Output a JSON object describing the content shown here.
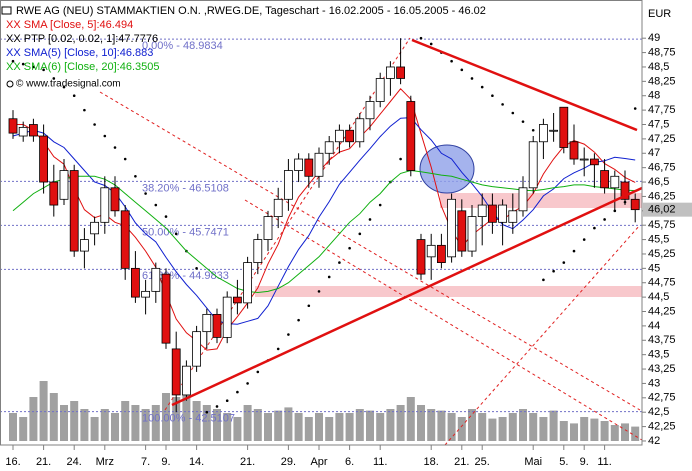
{
  "chart_data": {
    "type": "candlestick",
    "title": "RWE AG (NEU) STAMMAKTIEN O.N. ,RWEG.DE, Tageschart - 16.02.2005 - 16.05.2005 - 46.02",
    "copyright": "© www.tradesignal.com",
    "currency": "EUR",
    "last_price": {
      "value": 46.02,
      "label": "46,02"
    },
    "categories": [
      "16.",
      null,
      null,
      "21.",
      null,
      null,
      "24.",
      null,
      null,
      "Mrz",
      null,
      null,
      null,
      "7.",
      null,
      "9.",
      null,
      null,
      "14.",
      null,
      null,
      null,
      null,
      "21.",
      null,
      null,
      null,
      "29.",
      null,
      null,
      "Apr",
      null,
      null,
      "6.",
      null,
      null,
      "11.",
      null,
      null,
      null,
      null,
      "18.",
      null,
      null,
      "21.",
      null,
      "25.",
      null,
      null,
      null,
      null,
      "Mai",
      null,
      null,
      "5.",
      null,
      "9.",
      null,
      "11.",
      null,
      null,
      null
    ],
    "open": [
      47.6,
      47.3,
      47.5,
      47.3,
      46.5,
      46.2,
      46.7,
      45.3,
      45.6,
      45.8,
      46.4,
      46.0,
      45.0,
      44.5,
      44.6,
      44.9,
      43.6,
      42.8,
      43.3,
      43.9,
      44.2,
      43.8,
      44.5,
      44.4,
      45.1,
      45.5,
      45.9,
      46.2,
      46.7,
      46.9,
      46.6,
      47.0,
      47.2,
      47.4,
      47.2,
      47.6,
      47.9,
      48.3,
      48.5,
      47.9,
      45.5,
      45.2,
      45.4,
      45.2,
      46.0,
      45.3,
      45.9,
      46.1,
      45.8,
      45.8,
      46.0,
      46.4,
      47.2,
      47.4,
      47.8,
      47.2,
      46.9,
      46.9,
      46.7,
      46.4,
      46.5,
      46.2
    ],
    "high": [
      47.75,
      47.55,
      47.6,
      47.5,
      46.8,
      46.9,
      46.8,
      45.7,
      45.9,
      46.6,
      46.6,
      46.1,
      45.3,
      44.8,
      45.1,
      45.0,
      43.9,
      43.4,
      44.0,
      44.3,
      44.3,
      44.6,
      44.8,
      45.2,
      45.6,
      46.0,
      46.4,
      46.9,
      47.0,
      47.0,
      47.1,
      47.3,
      47.5,
      47.5,
      47.7,
      48.0,
      48.4,
      48.6,
      49.0,
      48.0,
      45.6,
      45.6,
      45.6,
      46.3,
      46.2,
      46.1,
      46.3,
      46.3,
      46.2,
      46.3,
      46.6,
      47.3,
      47.6,
      47.7,
      47.8,
      47.5,
      47.1,
      47.0,
      46.9,
      46.7,
      46.7,
      46.3
    ],
    "low": [
      47.25,
      47.2,
      47.2,
      46.3,
      45.9,
      46.1,
      45.2,
      45.0,
      45.4,
      45.6,
      45.9,
      44.8,
      44.4,
      44.2,
      44.4,
      43.6,
      42.5,
      42.7,
      43.2,
      43.6,
      43.7,
      43.7,
      44.2,
      44.3,
      44.9,
      45.3,
      45.7,
      46.0,
      46.5,
      46.4,
      46.4,
      46.8,
      47.0,
      47.1,
      47.1,
      47.4,
      47.8,
      48.0,
      48.2,
      46.6,
      44.8,
      44.8,
      45.0,
      45.1,
      45.2,
      45.2,
      45.4,
      45.6,
      45.4,
      45.6,
      45.9,
      46.3,
      46.9,
      47.2,
      47.0,
      46.8,
      46.6,
      46.4,
      46.3,
      46.0,
      46.1,
      45.8
    ],
    "close": [
      47.35,
      47.45,
      47.3,
      46.5,
      46.1,
      46.7,
      45.3,
      45.5,
      45.8,
      46.4,
      46.0,
      45.0,
      44.5,
      44.6,
      45.0,
      43.7,
      42.8,
      43.3,
      43.9,
      44.2,
      43.8,
      44.5,
      44.4,
      45.1,
      45.5,
      45.9,
      46.2,
      46.7,
      46.9,
      46.6,
      47.0,
      47.2,
      47.4,
      47.2,
      47.6,
      47.9,
      48.3,
      48.5,
      48.3,
      46.7,
      44.9,
      45.4,
      45.1,
      46.2,
      45.3,
      45.9,
      46.1,
      45.8,
      46.1,
      46.0,
      46.4,
      47.2,
      47.5,
      47.4,
      47.1,
      46.9,
      46.9,
      46.8,
      46.4,
      46.6,
      46.2,
      46.02
    ],
    "up_color": "#ffffff",
    "down_color": "#e01010",
    "series": [
      {
        "name": "XX SMA [Close, 5]:46.494",
        "color": "#e01010",
        "style": "line",
        "values": [
          47.5,
          47.5,
          47.4,
          47.2,
          46.94,
          46.81,
          46.38,
          46.02,
          45.88,
          45.94,
          45.8,
          45.74,
          45.54,
          45.3,
          45.02,
          44.56,
          44.12,
          43.88,
          43.74,
          43.58,
          43.6,
          43.94,
          44.16,
          44.4,
          44.66,
          45.08,
          45.42,
          45.88,
          46.24,
          46.46,
          46.68,
          46.88,
          47.02,
          47.08,
          47.28,
          47.46,
          47.68,
          47.9,
          48.12,
          47.94,
          47.34,
          46.76,
          46.08,
          45.66,
          45.38,
          45.58,
          45.72,
          45.86,
          45.84,
          45.98,
          46.08,
          46.3,
          46.64,
          46.9,
          47.12,
          47.22,
          47.16,
          47.02,
          46.82,
          46.72,
          46.58,
          46.494
        ]
      },
      {
        "name": "XX PTP [0.02, 0.02, 1]:47.7776",
        "color": "#000000",
        "style": "dots",
        "values": [
          48.6,
          48.55,
          48.5,
          48.45,
          48.3,
          48.15,
          48.0,
          47.75,
          47.5,
          47.3,
          47.1,
          46.9,
          46.6,
          46.3,
          46.1,
          45.9,
          45.6,
          45.3,
          45.0,
          42.5,
          42.6,
          42.7,
          42.85,
          43.0,
          43.2,
          43.4,
          43.6,
          43.85,
          44.1,
          44.35,
          44.6,
          44.85,
          45.1,
          45.35,
          45.6,
          45.85,
          46.1,
          46.5,
          46.9,
          47.4,
          49.0,
          48.9,
          48.75,
          48.6,
          48.45,
          48.3,
          48.15,
          48.0,
          47.85,
          47.7,
          47.55,
          47.4,
          44.8,
          44.95,
          45.1,
          45.3,
          45.5,
          45.7,
          45.85,
          46.0,
          46.15,
          47.7776
        ]
      },
      {
        "name": "XX SMA(5) [Close, 10]:46.883",
        "color": "#1020d0",
        "style": "line",
        "values": [
          47.3,
          47.35,
          47.4,
          47.35,
          47.2,
          47.1,
          46.9,
          46.7,
          46.5,
          46.44,
          46.31,
          46.07,
          45.79,
          45.6,
          45.46,
          45.19,
          44.94,
          44.72,
          44.53,
          44.31,
          44.09,
          44.04,
          44.03,
          44.08,
          44.13,
          44.35,
          44.69,
          45.03,
          45.33,
          45.57,
          45.89,
          46.16,
          46.46,
          46.67,
          46.88,
          47.08,
          47.29,
          47.47,
          47.61,
          47.62,
          47.41,
          47.23,
          47.0,
          46.9,
          46.67,
          46.47,
          46.25,
          45.98,
          45.76,
          45.69,
          45.84,
          46.02,
          46.26,
          46.38,
          46.56,
          46.66,
          46.74,
          46.84,
          46.87,
          46.93,
          46.91,
          46.883
        ]
      },
      {
        "name": "XX SMA(6) [Close, 20]:46.3505",
        "color": "#10b010",
        "style": "line",
        "values": [
          46.0,
          46.15,
          46.3,
          46.4,
          46.5,
          46.55,
          46.6,
          46.6,
          46.6,
          46.55,
          46.45,
          46.3,
          46.15,
          46.0,
          45.85,
          45.7,
          45.5,
          45.3,
          45.15,
          45.0,
          44.85,
          44.75,
          44.65,
          44.6,
          44.58,
          44.6,
          44.65,
          44.75,
          44.9,
          45.05,
          45.2,
          45.4,
          45.6,
          45.8,
          45.95,
          46.15,
          46.3,
          46.5,
          46.65,
          46.7,
          46.68,
          46.65,
          46.62,
          46.6,
          46.55,
          46.5,
          46.45,
          46.42,
          46.4,
          46.38,
          46.36,
          46.35,
          46.37,
          46.4,
          46.42,
          46.45,
          46.45,
          46.42,
          46.4,
          46.38,
          46.36,
          46.3505
        ]
      }
    ],
    "volume": [
      35,
      30,
      55,
      75,
      60,
      45,
      50,
      40,
      30,
      40,
      35,
      50,
      45,
      40,
      45,
      60,
      55,
      80,
      50,
      45,
      40,
      35,
      30,
      45,
      40,
      35,
      38,
      42,
      35,
      30,
      35,
      30,
      35,
      35,
      40,
      38,
      35,
      40,
      45,
      55,
      45,
      40,
      38,
      35,
      30,
      40,
      35,
      28,
      30,
      35,
      40,
      35,
      30,
      38,
      25,
      22,
      30,
      28,
      25,
      20,
      22,
      18
    ],
    "volume_lim": [
      0,
      100
    ],
    "volume_color": "#a0a0a0",
    "levels": [
      {
        "value": 48.9834,
        "label": "0.00% - 48.9834"
      },
      {
        "value": 46.5108,
        "label": "38.20% - 46.5108"
      },
      {
        "value": 45.7471,
        "label": "50.00% - 45.7471"
      },
      {
        "value": 44.9833,
        "label": "61.80% - 44.9833"
      },
      {
        "value": 42.5107,
        "label": "100.00% - 42.5107"
      }
    ],
    "level_color": "#7070c8",
    "ylim": [
      41.93,
      49.49
    ],
    "yticks": [
      42,
      {
        "value": 42.25,
        "label": "42,25"
      },
      {
        "value": 42.5,
        "label": "42,5"
      },
      {
        "value": 42.75,
        "label": "42,75"
      },
      43,
      {
        "value": 43.25,
        "label": "43,25"
      },
      {
        "value": 43.5,
        "label": "43,5"
      },
      {
        "value": 43.75,
        "label": "43,75"
      },
      44,
      {
        "value": 44.25,
        "label": "44,25"
      },
      {
        "value": 44.5,
        "label": "44,5"
      },
      {
        "value": 44.75,
        "label": "44,75"
      },
      45,
      {
        "value": 45.25,
        "label": "45,25"
      },
      {
        "value": 45.5,
        "label": "45,5"
      },
      {
        "value": 45.75,
        "label": "45,75"
      },
      46,
      {
        "value": 46.25,
        "label": "46,25"
      },
      {
        "value": 46.5,
        "label": "46,5"
      },
      {
        "value": 46.75,
        "label": "46,75"
      },
      47,
      {
        "value": 47.25,
        "label": "47,25"
      },
      {
        "value": 47.5,
        "label": "47,5"
      },
      {
        "value": 47.75,
        "label": "47,75"
      },
      48,
      {
        "value": 48.25,
        "label": "48,25"
      },
      {
        "value": 48.5,
        "label": "48,5"
      },
      {
        "value": 48.75,
        "label": "48,75"
      },
      49
    ]
  }
}
